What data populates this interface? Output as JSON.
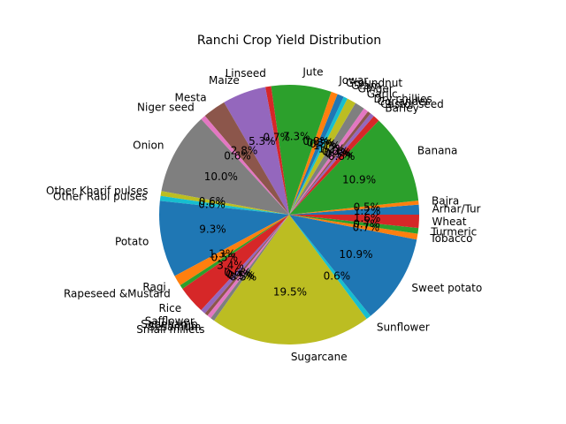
{
  "chart_data": {
    "type": "pie",
    "title": "Ranchi Crop Yield Distribution",
    "start_angle_deg": 0,
    "direction": "counterclockwise",
    "slices": [
      {
        "label": "Arhar/Tur",
        "value": 1.2,
        "pct_label": "1.2%",
        "color": "#1f77b4"
      },
      {
        "label": "Bajra",
        "value": 0.5,
        "pct_label": "0.5%",
        "color": "#ff7f0e"
      },
      {
        "label": "Banana",
        "value": 10.9,
        "pct_label": "10.9%",
        "color": "#2ca02c"
      },
      {
        "label": "Barley",
        "value": 0.8,
        "pct_label": "0.8%",
        "color": "#d62728"
      },
      {
        "label": "Castor seed",
        "value": 0.5,
        "pct_label": "0.5%",
        "color": "#9467bd"
      },
      {
        "label": "Coriander",
        "value": 0.4,
        "pct_label": "0.4%",
        "color": "#8c564b"
      },
      {
        "label": "Dry chillies",
        "value": 0.6,
        "pct_label": "0.6%",
        "color": "#e377c2"
      },
      {
        "label": "Garlic",
        "value": 1.2,
        "pct_label": "1.2%",
        "color": "#7f7f7f"
      },
      {
        "label": "Ginger",
        "value": 1.1,
        "pct_label": "1.1%",
        "color": "#bcbd22"
      },
      {
        "label": "Gram",
        "value": 0.5,
        "pct_label": "0.5%",
        "color": "#17becf"
      },
      {
        "label": "Groundnut",
        "value": 0.8,
        "pct_label": "0.8%",
        "color": "#1f77b4"
      },
      {
        "label": "Jowar",
        "value": 0.8,
        "pct_label": "0.8%",
        "color": "#ff7f0e"
      },
      {
        "label": "Jute",
        "value": 7.3,
        "pct_label": "7.3%",
        "color": "#2ca02c"
      },
      {
        "label": "Linseed",
        "value": 0.7,
        "pct_label": "0.7%",
        "color": "#d62728"
      },
      {
        "label": "Maize",
        "value": 5.3,
        "pct_label": "5.3%",
        "color": "#9467bd"
      },
      {
        "label": "Mesta",
        "value": 2.8,
        "pct_label": "2.8%",
        "color": "#8c564b"
      },
      {
        "label": "Niger seed",
        "value": 0.6,
        "pct_label": "0.6%",
        "color": "#e377c2"
      },
      {
        "label": "Onion",
        "value": 10.0,
        "pct_label": "10.0%",
        "color": "#7f7f7f"
      },
      {
        "label": "Other Kharif pulses",
        "value": 0.6,
        "pct_label": "0.6%",
        "color": "#bcbd22"
      },
      {
        "label": "Other Rabi pulses",
        "value": 0.6,
        "pct_label": "0.6%",
        "color": "#17becf"
      },
      {
        "label": "Potato",
        "value": 9.3,
        "pct_label": "9.3%",
        "color": "#1f77b4"
      },
      {
        "label": "Ragi",
        "value": 1.3,
        "pct_label": "1.3%",
        "color": "#ff7f0e"
      },
      {
        "label": "Rapeseed &Mustard",
        "value": 0.5,
        "pct_label": "0.5%",
        "color": "#2ca02c"
      },
      {
        "label": "Rice",
        "value": 3.4,
        "pct_label": "3.4%",
        "color": "#d62728"
      },
      {
        "label": "Safflower",
        "value": 0.6,
        "pct_label": "0.6%",
        "color": "#9467bd"
      },
      {
        "label": "Sannhamp",
        "value": 0.4,
        "pct_label": "0.4%",
        "color": "#8c564b"
      },
      {
        "label": "Sesamum",
        "value": 0.5,
        "pct_label": "0.5%",
        "color": "#e377c2"
      },
      {
        "label": "Small millets",
        "value": 0.5,
        "pct_label": "0.5%",
        "color": "#7f7f7f"
      },
      {
        "label": "Sugarcane",
        "value": 19.5,
        "pct_label": "19.5%",
        "color": "#bcbd22"
      },
      {
        "label": "Sunflower",
        "value": 0.6,
        "pct_label": "0.6%",
        "color": "#17becf"
      },
      {
        "label": "Sweet potato",
        "value": 10.9,
        "pct_label": "10.9%",
        "color": "#1f77b4"
      },
      {
        "label": "Tobacco",
        "value": 0.7,
        "pct_label": "0.7%",
        "color": "#ff7f0e"
      },
      {
        "label": "Turmeric",
        "value": 0.7,
        "pct_label": "0.7%",
        "color": "#2ca02c"
      },
      {
        "label": "Wheat",
        "value": 1.6,
        "pct_label": "1.6%",
        "color": "#d62728"
      }
    ]
  }
}
